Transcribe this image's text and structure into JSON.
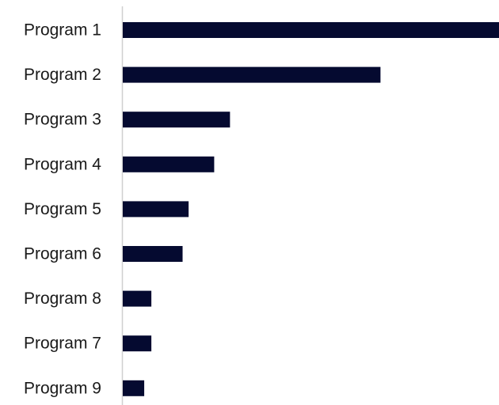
{
  "chart_data": {
    "type": "bar",
    "orientation": "horizontal",
    "categories": [
      "Program 1",
      "Program 2",
      "Program 3",
      "Program 4",
      "Program 5",
      "Program 6",
      "Program 8",
      "Program 7",
      "Program 9"
    ],
    "values": [
      100,
      68.5,
      28.5,
      24.3,
      17.5,
      15.9,
      7.6,
      7.6,
      5.7
    ],
    "title": "",
    "xlabel": "",
    "ylabel": "",
    "xlim": [
      0,
      100
    ],
    "grid": false,
    "legend": "none",
    "bar_color": "#050a30",
    "axis_color": "#d0d0d0"
  }
}
